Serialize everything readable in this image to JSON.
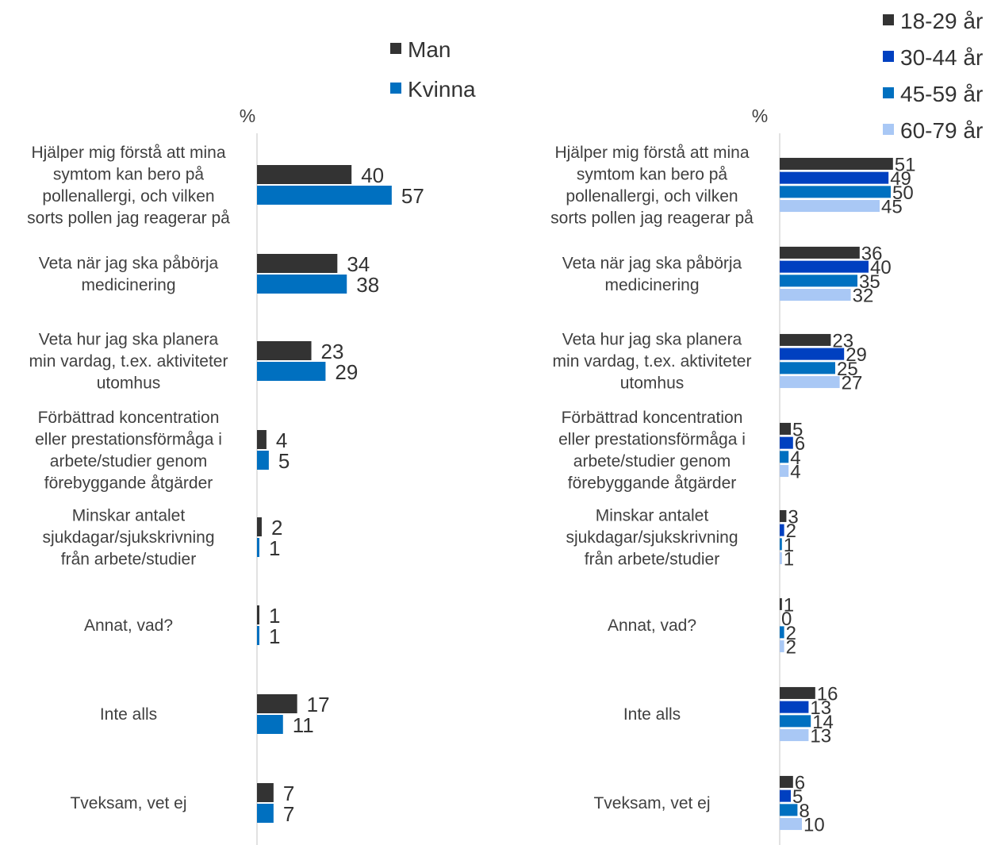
{
  "chart_data": [
    {
      "type": "bar",
      "orientation": "horizontal",
      "unit_label": "%",
      "categories": [
        "Hjälper mig förstå att mina symtom kan bero på pollenallergi, och vilken sorts pollen jag reagerar på",
        "Veta när jag ska påbörja medicinering",
        "Veta hur jag ska planera min vardag, t.ex. aktiviteter utomhus",
        "Förbättrad koncentration eller prestationsförmåga i arbete/studier genom förebyggande åtgärder",
        "Minskar antalet sjukdagar/sjukskrivning från arbete/studier",
        "Annat, vad?",
        "Inte alls",
        "Tveksam, vet ej"
      ],
      "category_lines": [
        [
          "Hjälper mig förstå att mina",
          "symtom kan bero på",
          "pollenallergi, och vilken",
          "sorts pollen jag reagerar på"
        ],
        [
          "Veta när jag ska påbörja",
          "medicinering"
        ],
        [
          "Veta hur jag ska planera",
          "min vardag, t.ex. aktiviteter",
          "utomhus"
        ],
        [
          "Förbättrad koncentration",
          "eller prestationsförmåga i",
          "arbete/studier genom",
          "förebyggande åtgärder"
        ],
        [
          "Minskar antalet",
          "sjukdagar/sjukskrivning",
          "från arbete/studier"
        ],
        [
          "Annat, vad?"
        ],
        [
          "Inte alls"
        ],
        [
          "Tveksam, vet ej"
        ]
      ],
      "series": [
        {
          "name": "Man",
          "color": "#333333",
          "values": [
            40,
            34,
            23,
            4,
            2,
            1,
            17,
            7
          ]
        },
        {
          "name": "Kvinna",
          "color": "#0070C0",
          "values": [
            57,
            38,
            29,
            5,
            1,
            1,
            11,
            7
          ]
        }
      ],
      "legend": {
        "position": "top",
        "items": [
          "Man",
          "Kvinna"
        ]
      },
      "xlim": [
        0,
        100
      ],
      "grid": false
    },
    {
      "type": "bar",
      "orientation": "horizontal",
      "unit_label": "%",
      "categories": [
        "Hjälper mig förstå att mina symtom kan bero på pollenallergi, och vilken sorts pollen jag reagerar på",
        "Veta när jag ska påbörja medicinering",
        "Veta hur jag ska planera min vardag, t.ex. aktiviteter utomhus",
        "Förbättrad koncentration eller prestationsförmåga i arbete/studier genom förebyggande åtgärder",
        "Minskar antalet sjukdagar/sjukskrivning från arbete/studier",
        "Annat, vad?",
        "Inte alls",
        "Tveksam, vet ej"
      ],
      "category_lines": [
        [
          "Hjälper mig förstå att mina",
          "symtom kan bero på",
          "pollenallergi, och vilken",
          "sorts pollen jag reagerar på"
        ],
        [
          "Veta när jag ska påbörja",
          "medicinering"
        ],
        [
          "Veta hur jag ska planera",
          "min vardag, t.ex. aktiviteter",
          "utomhus"
        ],
        [
          "Förbättrad koncentration",
          "eller prestationsförmåga i",
          "arbete/studier genom",
          "förebyggande åtgärder"
        ],
        [
          "Minskar antalet",
          "sjukdagar/sjukskrivning",
          "från arbete/studier"
        ],
        [
          "Annat, vad?"
        ],
        [
          "Inte alls"
        ],
        [
          "Tveksam, vet ej"
        ]
      ],
      "series": [
        {
          "name": "18-29 år",
          "color": "#333333",
          "values": [
            51,
            36,
            23,
            5,
            3,
            1,
            16,
            6
          ]
        },
        {
          "name": "30-44 år",
          "color": "#0040C0",
          "values": [
            49,
            40,
            29,
            6,
            2,
            0,
            13,
            5
          ]
        },
        {
          "name": "45-59 år",
          "color": "#0070C0",
          "values": [
            50,
            35,
            25,
            4,
            1,
            2,
            14,
            8
          ]
        },
        {
          "name": "60-79 år",
          "color": "#A9C8F5",
          "values": [
            45,
            32,
            27,
            4,
            1,
            2,
            13,
            10
          ]
        }
      ],
      "legend": {
        "position": "top-right",
        "items": [
          "18-29 år",
          "30-44 år",
          "45-59 år",
          "60-79 år"
        ]
      },
      "xlim": [
        0,
        100
      ],
      "grid": false
    }
  ]
}
